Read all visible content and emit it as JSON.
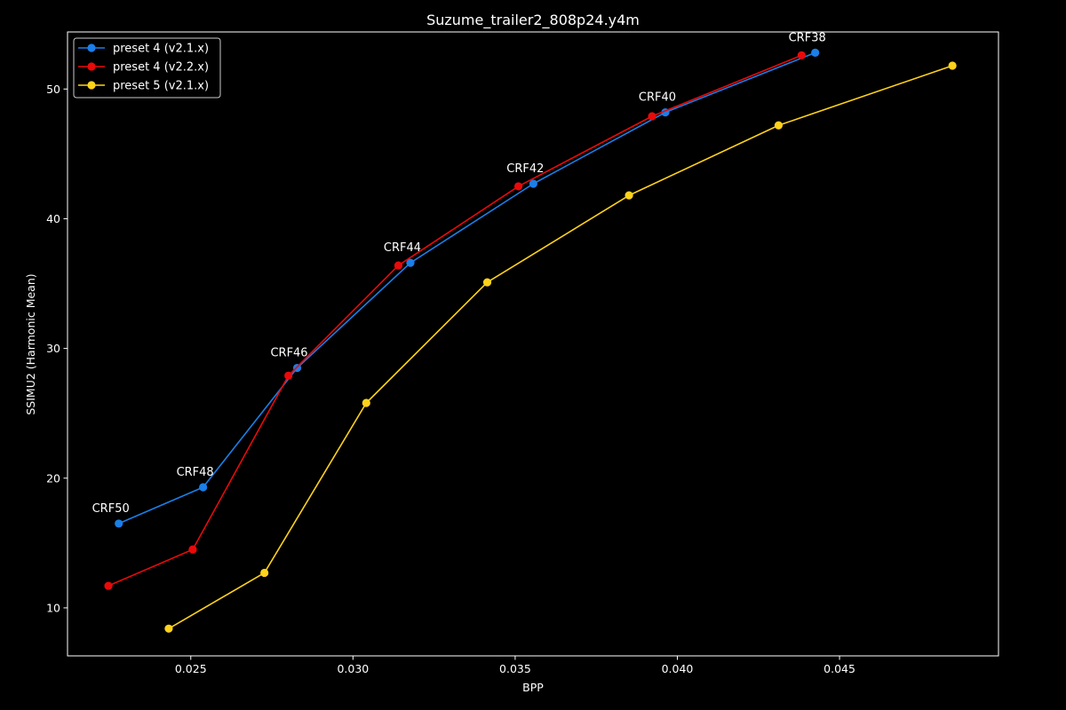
{
  "chart_data": {
    "type": "line",
    "title": "Suzume_trailer2_808p24.y4m",
    "xlabel": "BPP",
    "ylabel": "SSIMU2 (Harmonic Mean)",
    "xlim": [
      0.0212,
      0.0499
    ],
    "ylim": [
      6.3,
      54.4
    ],
    "xticks": [
      0.025,
      0.03,
      0.035,
      0.04,
      0.045
    ],
    "xtick_labels": [
      "0.025",
      "0.030",
      "0.035",
      "0.040",
      "0.045"
    ],
    "yticks": [
      10,
      20,
      30,
      40,
      50
    ],
    "ytick_labels": [
      "10",
      "20",
      "30",
      "40",
      "50"
    ],
    "grid": false,
    "legend_position": "top-left",
    "background": "#000000",
    "series": [
      {
        "name": "preset 4 (v2.1.x)",
        "color": "#1a7fe8",
        "x": [
          0.02278,
          0.02538,
          0.02828,
          0.03177,
          0.03556,
          0.03963,
          0.04425
        ],
        "y": [
          16.5,
          19.3,
          28.5,
          36.6,
          42.7,
          48.2,
          52.8
        ]
      },
      {
        "name": "preset 4 (v2.2.x)",
        "color": "#e80a0a",
        "x": [
          0.02246,
          0.02506,
          0.02801,
          0.0314,
          0.0351,
          0.03922,
          0.04383
        ],
        "y": [
          11.7,
          14.5,
          27.9,
          36.4,
          42.5,
          47.9,
          52.6
        ]
      },
      {
        "name": "preset 5 (v2.1.x)",
        "color": "#ffd21a",
        "x": [
          0.02432,
          0.02727,
          0.03041,
          0.03414,
          0.03851,
          0.04312,
          0.04848
        ],
        "y": [
          8.4,
          12.7,
          25.8,
          35.1,
          41.8,
          47.2,
          51.8
        ]
      }
    ],
    "annotations": [
      {
        "text": "CRF50",
        "x": 0.02278,
        "y": 16.5
      },
      {
        "text": "CRF48",
        "x": 0.02538,
        "y": 19.3
      },
      {
        "text": "CRF46",
        "x": 0.02828,
        "y": 28.5
      },
      {
        "text": "CRF44",
        "x": 0.03177,
        "y": 36.6
      },
      {
        "text": "CRF42",
        "x": 0.03556,
        "y": 42.7
      },
      {
        "text": "CRF40",
        "x": 0.03963,
        "y": 48.2
      },
      {
        "text": "CRF38",
        "x": 0.04425,
        "y": 52.8
      }
    ]
  }
}
